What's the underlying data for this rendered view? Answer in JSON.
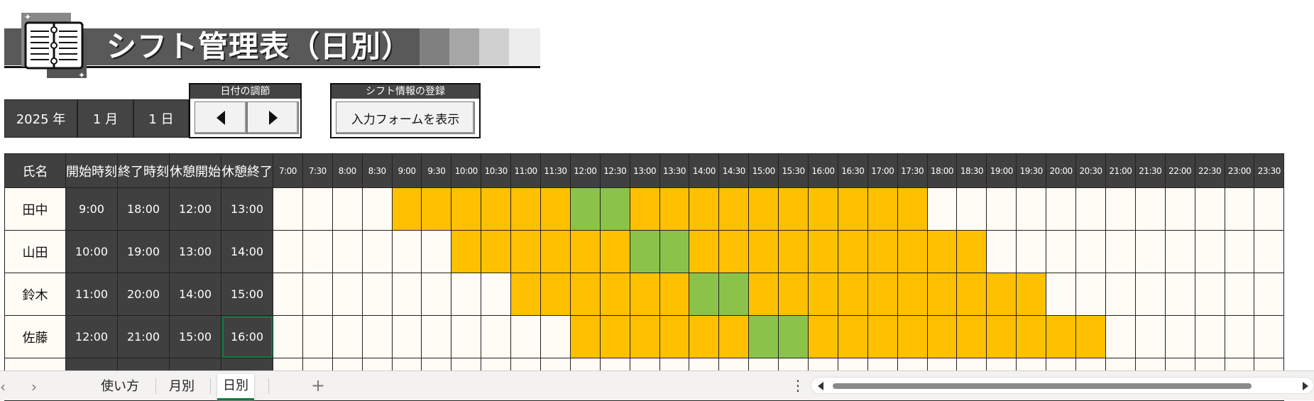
{
  "title": "シフト管理表（日別）",
  "date": {
    "year": "2025 年",
    "month": "1 月",
    "day": "1 日"
  },
  "date_adjust": {
    "label": "日付の調節",
    "prev_icon": "triangle-left-icon",
    "next_icon": "triangle-right-icon"
  },
  "shift_register": {
    "label": "シフト情報の登録",
    "button": "入力フォームを表示"
  },
  "columns": {
    "name": "氏名",
    "start": "開始時刻",
    "end": "終了時刻",
    "break_start": "休憩開始",
    "break_end": "休憩終了"
  },
  "time_slots": [
    "7:00",
    "7:30",
    "8:00",
    "8:30",
    "9:00",
    "9:30",
    "10:00",
    "10:30",
    "11:00",
    "11:30",
    "12:00",
    "12:30",
    "13:00",
    "13:30",
    "14:00",
    "14:30",
    "15:00",
    "15:30",
    "16:00",
    "16:30",
    "17:00",
    "17:30",
    "18:00",
    "18:30",
    "19:00",
    "19:30",
    "20:00",
    "20:30",
    "21:00",
    "21:30",
    "22:00",
    "22:30",
    "23:00",
    "23:30"
  ],
  "rows": [
    {
      "name": "田中",
      "start": "9:00",
      "end": "18:00",
      "break_start": "12:00",
      "break_end": "13:00"
    },
    {
      "name": "山田",
      "start": "10:00",
      "end": "19:00",
      "break_start": "13:00",
      "break_end": "14:00"
    },
    {
      "name": "鈴木",
      "start": "11:00",
      "end": "20:00",
      "break_start": "14:00",
      "break_end": "15:00"
    },
    {
      "name": "佐藤",
      "start": "12:00",
      "end": "21:00",
      "break_start": "15:00",
      "break_end": "16:00"
    }
  ],
  "colors": {
    "work": "#ffc000",
    "break": "#8bc34a",
    "header": "#404040",
    "empty": "#fffcf5"
  },
  "sheet_tabs": [
    "使い方",
    "月別",
    "日別"
  ],
  "active_tab": "日別",
  "tab_icons": {
    "prev": "chevron-left-icon",
    "next": "chevron-right-icon",
    "add": "plus-icon",
    "more": "vertical-dots-icon"
  }
}
